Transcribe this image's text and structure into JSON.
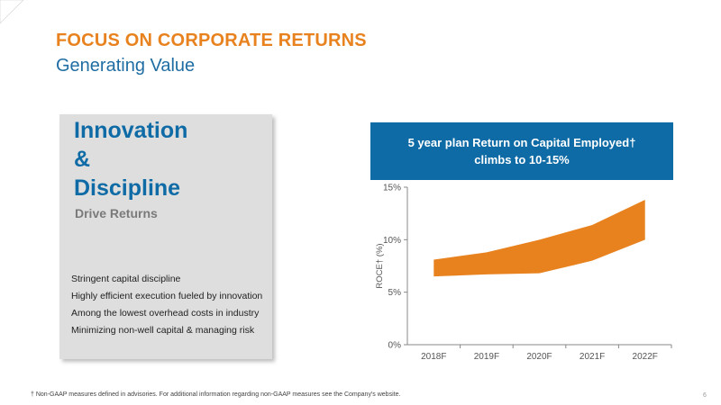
{
  "slide": {
    "title": "FOCUS ON CORPORATE RETURNS",
    "subtitle": "Generating Value",
    "headline": [
      "Innovation",
      "&",
      "Discipline"
    ],
    "tagline": "Drive Returns",
    "bullets": [
      "Stringent capital discipline",
      "Highly efficient execution fueled by innovation",
      "Among the lowest overhead costs in industry",
      "Minimizing non-well capital & managing risk"
    ],
    "footnote": "† Non-GAAP measures defined in advisories. For additional information regarding non-GAAP measures see the Company's website.",
    "page_number": "6"
  },
  "colors": {
    "accent_orange": "#E8821E",
    "brand_blue": "#0F6BA6",
    "subtitle_blue": "#1F6DA3",
    "panel_gray": "#dedede"
  },
  "chart_data": {
    "type": "area",
    "title": "5 year plan Return on Capital Employed† climbs to 10-15%",
    "ylabel": "ROCE† (%)",
    "xlabel": "",
    "categories": [
      "2018F",
      "2019F",
      "2020F",
      "2021F",
      "2022F"
    ],
    "series": [
      {
        "low": [
          6.5,
          6.7,
          6.8,
          8.0,
          10.0
        ],
        "high": [
          8.1,
          8.8,
          10.0,
          11.4,
          13.8
        ]
      }
    ],
    "ylim": [
      0,
      15
    ],
    "yticks": [
      0,
      5,
      10,
      15
    ],
    "ytick_labels": [
      "0%",
      "5%",
      "10%",
      "15%"
    ],
    "fill_color": "#E8821E",
    "grid": false
  }
}
